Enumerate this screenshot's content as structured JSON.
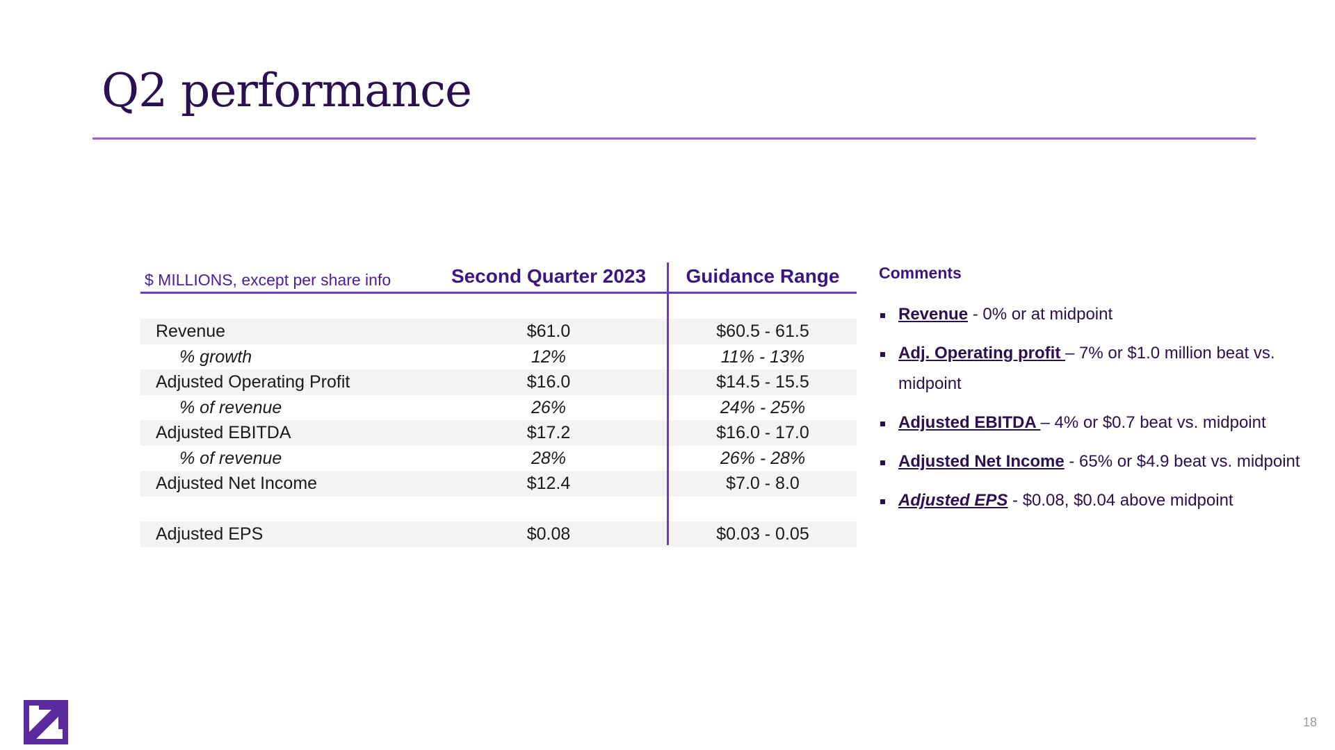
{
  "title": "Q2 performance",
  "table": {
    "label_header": "$ MILLIONS, except per share info",
    "col_q2_header": "Second Quarter 2023",
    "col_guid_header": "Guidance Range",
    "rows": [
      {
        "label": "Revenue",
        "q2": "$61.0",
        "guid": "$60.5 - 61.5"
      },
      {
        "label": "% growth",
        "q2": "12%",
        "guid": "11% - 13%"
      },
      {
        "label": "Adjusted Operating Profit",
        "q2": "$16.0",
        "guid": "$14.5 - 15.5"
      },
      {
        "label": "% of revenue",
        "q2": "26%",
        "guid": "24% - 25%"
      },
      {
        "label": "Adjusted EBITDA",
        "q2": "$17.2",
        "guid": "$16.0 - 17.0"
      },
      {
        "label": "% of revenue",
        "q2": "28%",
        "guid": "26% - 28%"
      },
      {
        "label": "Adjusted Net Income",
        "q2": "$12.4",
        "guid": "$7.0 - 8.0"
      },
      {
        "label": "Adjusted EPS",
        "q2": "$0.08",
        "guid": "$0.03 - 0.05"
      }
    ]
  },
  "comments": {
    "heading": "Comments",
    "items": [
      {
        "key": "Revenue",
        "text": " - 0% or at midpoint"
      },
      {
        "key": "Adj. Operating profit ",
        "text": "– 7% or $1.0 million beat vs. midpoint"
      },
      {
        "key": "Adjusted EBITDA ",
        "text": "– 4% or $0.7 beat vs. midpoint"
      },
      {
        "key": "Adjusted Net Income",
        "text": " - 65% or $4.9 beat vs. midpoint"
      },
      {
        "key": "Adjusted EPS",
        "text": " -  $0.08, $0.04 above midpoint"
      }
    ]
  },
  "footer": {
    "page_number": "18",
    "logo_icon": "arrow-logo-icon"
  },
  "colors": {
    "brand_dark": "#2a1050",
    "brand_purple": "#6a3cc0",
    "rule": "#9b5ccc"
  }
}
